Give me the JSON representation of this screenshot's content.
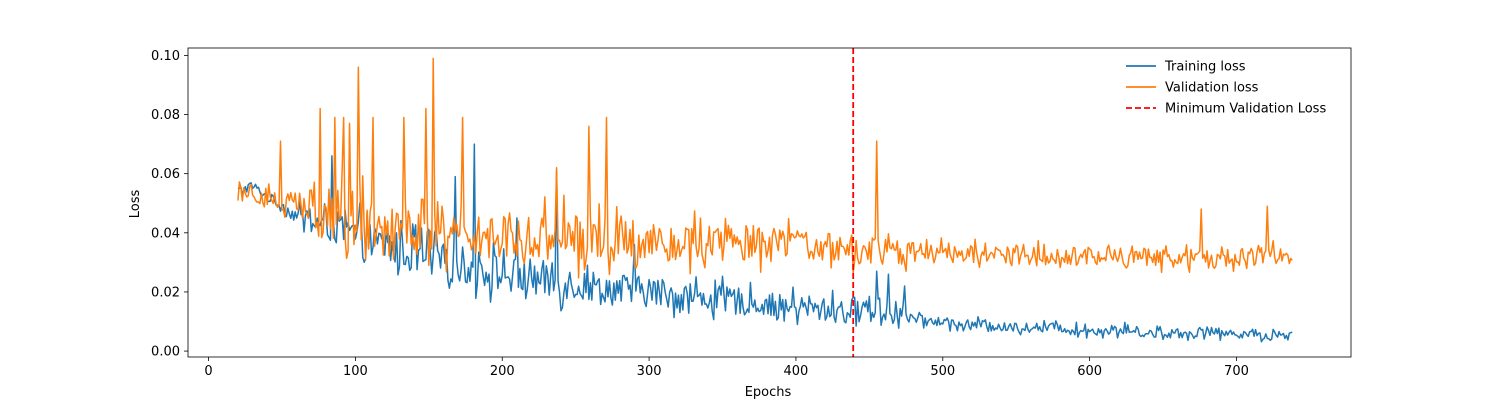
{
  "chart_data": {
    "type": "line",
    "title": "",
    "xlabel": "Epochs",
    "ylabel": "Loss",
    "xlim": [
      -14,
      778
    ],
    "ylim": [
      -0.002,
      0.1025
    ],
    "xticks": [
      0,
      100,
      200,
      300,
      400,
      500,
      600,
      700
    ],
    "xtick_labels": [
      "0",
      "100",
      "200",
      "300",
      "400",
      "500",
      "600",
      "700"
    ],
    "yticks": [
      0.0,
      0.02,
      0.04,
      0.06,
      0.08,
      0.1
    ],
    "ytick_labels": [
      "0.00",
      "0.02",
      "0.04",
      "0.06",
      "0.08",
      "0.10"
    ],
    "grid": false,
    "legend_position": "upper-right",
    "vline": {
      "x": 439,
      "label": "Minimum Validation Loss",
      "color": "#ff0000",
      "style": "dashed"
    },
    "series": [
      {
        "name": "Training loss",
        "color": "#1f77b4",
        "x": [
          20,
          25,
          30,
          35,
          40,
          45,
          50,
          55,
          60,
          65,
          70,
          75,
          80,
          85,
          90,
          95,
          100,
          105,
          110,
          115,
          120,
          125,
          130,
          135,
          140,
          145,
          150,
          155,
          160,
          165,
          170,
          175,
          180,
          185,
          190,
          195,
          200,
          210,
          220,
          230,
          240,
          250,
          260,
          270,
          280,
          290,
          300,
          310,
          320,
          330,
          340,
          350,
          360,
          370,
          380,
          390,
          400,
          410,
          420,
          430,
          435,
          440,
          445,
          450,
          455,
          460,
          465,
          470,
          475,
          480,
          490,
          500,
          510,
          520,
          530,
          540,
          550,
          560,
          570,
          580,
          590,
          600,
          610,
          620,
          630,
          640,
          650,
          660,
          670,
          680,
          690,
          700,
          710,
          720,
          730,
          738
        ],
        "y": [
          0.054,
          0.055,
          0.056,
          0.054,
          0.052,
          0.051,
          0.049,
          0.047,
          0.046,
          0.045,
          0.044,
          0.043,
          0.042,
          0.042,
          0.041,
          0.04,
          0.039,
          0.038,
          0.037,
          0.036,
          0.036,
          0.035,
          0.034,
          0.033,
          0.033,
          0.032,
          0.031,
          0.031,
          0.03,
          0.03,
          0.029,
          0.029,
          0.028,
          0.028,
          0.027,
          0.027,
          0.026,
          0.025,
          0.025,
          0.024,
          0.023,
          0.023,
          0.022,
          0.021,
          0.021,
          0.02,
          0.02,
          0.019,
          0.019,
          0.018,
          0.018,
          0.017,
          0.017,
          0.016,
          0.016,
          0.015,
          0.015,
          0.014,
          0.014,
          0.014,
          0.013,
          0.014,
          0.015,
          0.014,
          0.015,
          0.014,
          0.013,
          0.014,
          0.012,
          0.011,
          0.01,
          0.01,
          0.009,
          0.009,
          0.009,
          0.008,
          0.008,
          0.008,
          0.008,
          0.008,
          0.007,
          0.007,
          0.007,
          0.007,
          0.007,
          0.006,
          0.006,
          0.006,
          0.006,
          0.007,
          0.006,
          0.006,
          0.006,
          0.005,
          0.005,
          0.005
        ],
        "noise": [
          0.002,
          0.002,
          0.002,
          0.002,
          0.002,
          0.002,
          0.003,
          0.003,
          0.003,
          0.004,
          0.005,
          0.006,
          0.007,
          0.007,
          0.007,
          0.008,
          0.008,
          0.008,
          0.008,
          0.008,
          0.008,
          0.008,
          0.008,
          0.008,
          0.008,
          0.008,
          0.008,
          0.008,
          0.008,
          0.008,
          0.008,
          0.008,
          0.008,
          0.008,
          0.008,
          0.008,
          0.008,
          0.008,
          0.008,
          0.008,
          0.007,
          0.007,
          0.007,
          0.007,
          0.007,
          0.007,
          0.006,
          0.006,
          0.006,
          0.006,
          0.006,
          0.006,
          0.006,
          0.005,
          0.005,
          0.005,
          0.005,
          0.005,
          0.005,
          0.005,
          0.005,
          0.006,
          0.006,
          0.006,
          0.006,
          0.006,
          0.006,
          0.005,
          0.003,
          0.002,
          0.002,
          0.002,
          0.002,
          0.002,
          0.002,
          0.002,
          0.002,
          0.002,
          0.002,
          0.002,
          0.002,
          0.002,
          0.002,
          0.002,
          0.002,
          0.002,
          0.002,
          0.002,
          0.002,
          0.002,
          0.002,
          0.002,
          0.002,
          0.002,
          0.002,
          0.002
        ],
        "spikes": [
          [
            84,
            0.066
          ],
          [
            103,
            0.05
          ],
          [
            168,
            0.059
          ],
          [
            181,
            0.07
          ],
          [
            210,
            0.045
          ],
          [
            237,
            0.061
          ],
          [
            290,
            0.036
          ],
          [
            455,
            0.027
          ],
          [
            463,
            0.026
          ],
          [
            474,
            0.022
          ]
        ]
      },
      {
        "name": "Validation loss",
        "color": "#ff7f0e",
        "x": [
          20,
          25,
          30,
          35,
          40,
          45,
          50,
          60,
          70,
          80,
          90,
          100,
          110,
          120,
          130,
          140,
          150,
          160,
          170,
          180,
          190,
          200,
          220,
          240,
          260,
          280,
          300,
          320,
          340,
          360,
          380,
          400,
          420,
          440,
          460,
          480,
          500,
          520,
          540,
          560,
          580,
          600,
          620,
          640,
          660,
          680,
          700,
          720,
          738
        ],
        "y": [
          0.054,
          0.055,
          0.054,
          0.053,
          0.052,
          0.051,
          0.05,
          0.049,
          0.048,
          0.047,
          0.046,
          0.045,
          0.044,
          0.043,
          0.043,
          0.042,
          0.042,
          0.041,
          0.041,
          0.04,
          0.04,
          0.04,
          0.039,
          0.039,
          0.038,
          0.038,
          0.038,
          0.037,
          0.037,
          0.037,
          0.036,
          0.036,
          0.035,
          0.034,
          0.034,
          0.033,
          0.033,
          0.033,
          0.032,
          0.032,
          0.032,
          0.032,
          0.032,
          0.032,
          0.032,
          0.032,
          0.032,
          0.033,
          0.032
        ],
        "noise": [
          0.004,
          0.004,
          0.004,
          0.004,
          0.004,
          0.004,
          0.006,
          0.008,
          0.01,
          0.012,
          0.012,
          0.012,
          0.012,
          0.012,
          0.012,
          0.012,
          0.012,
          0.011,
          0.011,
          0.011,
          0.011,
          0.011,
          0.01,
          0.01,
          0.01,
          0.01,
          0.009,
          0.009,
          0.008,
          0.008,
          0.008,
          0.007,
          0.007,
          0.006,
          0.005,
          0.005,
          0.004,
          0.004,
          0.004,
          0.004,
          0.004,
          0.004,
          0.004,
          0.004,
          0.004,
          0.004,
          0.004,
          0.004,
          0.004
        ],
        "spikes": [
          [
            49,
            0.071
          ],
          [
            76,
            0.082
          ],
          [
            86,
            0.079
          ],
          [
            92,
            0.079
          ],
          [
            96,
            0.077
          ],
          [
            102,
            0.096
          ],
          [
            112,
            0.079
          ],
          [
            133,
            0.079
          ],
          [
            148,
            0.082
          ],
          [
            153,
            0.099
          ],
          [
            173,
            0.079
          ],
          [
            237,
            0.062
          ],
          [
            259,
            0.076
          ],
          [
            271,
            0.079
          ],
          [
            455,
            0.071
          ],
          [
            676,
            0.048
          ],
          [
            721,
            0.049
          ]
        ]
      }
    ]
  }
}
